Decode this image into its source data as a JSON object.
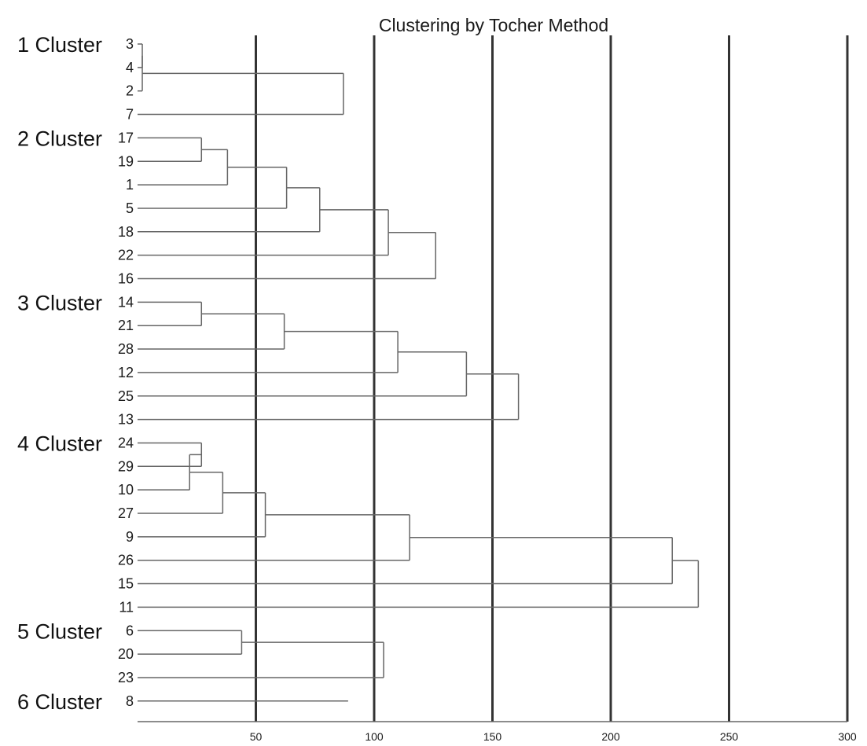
{
  "chart_data": {
    "type": "dendrogram",
    "title": "Clustering by Tocher Method",
    "xlim": [
      0,
      300
    ],
    "x_ticks": [
      50,
      100,
      150,
      200,
      250,
      300
    ],
    "vertical_gridlines": [
      50,
      100,
      150,
      200,
      250,
      300
    ],
    "line_color": "#666666",
    "grid_color": "#333333",
    "clusters": [
      {
        "label": "1 Cluster",
        "members": [
          "3",
          "4",
          "2",
          "7"
        ]
      },
      {
        "label": "2 Cluster",
        "members": [
          "17",
          "19",
          "1",
          "5",
          "18",
          "22",
          "16"
        ]
      },
      {
        "label": "3 Cluster",
        "members": [
          "14",
          "21",
          "28",
          "12",
          "25",
          "13"
        ]
      },
      {
        "label": "4 Cluster",
        "members": [
          "24",
          "29",
          "10",
          "27",
          "9",
          "26",
          "15",
          "11"
        ]
      },
      {
        "label": "5 Cluster",
        "members": [
          "6",
          "20",
          "23"
        ]
      },
      {
        "label": "6 Cluster",
        "members": [
          "8"
        ]
      }
    ],
    "leaves": [
      {
        "label": "3",
        "row": 0
      },
      {
        "label": "4",
        "row": 1
      },
      {
        "label": "2",
        "row": 2
      },
      {
        "label": "7",
        "row": 3
      },
      {
        "label": "17",
        "row": 4
      },
      {
        "label": "19",
        "row": 5
      },
      {
        "label": "1",
        "row": 6
      },
      {
        "label": "5",
        "row": 7
      },
      {
        "label": "18",
        "row": 8
      },
      {
        "label": "22",
        "row": 9
      },
      {
        "label": "16",
        "row": 10
      },
      {
        "label": "14",
        "row": 11
      },
      {
        "label": "21",
        "row": 12
      },
      {
        "label": "28",
        "row": 13
      },
      {
        "label": "12",
        "row": 14
      },
      {
        "label": "25",
        "row": 15
      },
      {
        "label": "13",
        "row": 16
      },
      {
        "label": "24",
        "row": 17
      },
      {
        "label": "29",
        "row": 18
      },
      {
        "label": "10",
        "row": 19
      },
      {
        "label": "27",
        "row": 20
      },
      {
        "label": "9",
        "row": 21
      },
      {
        "label": "26",
        "row": 22
      },
      {
        "label": "15",
        "row": 23
      },
      {
        "label": "11",
        "row": 24
      },
      {
        "label": "6",
        "row": 25
      },
      {
        "label": "20",
        "row": 26
      },
      {
        "label": "23",
        "row": 27
      },
      {
        "label": "8",
        "row": 28
      }
    ],
    "merges": [
      {
        "id": "m1",
        "children": [
          "3",
          "4"
        ],
        "height": 2
      },
      {
        "id": "m2",
        "children": [
          "m1",
          "2"
        ],
        "height": 2
      },
      {
        "id": "m3",
        "children": [
          "m2",
          "7"
        ],
        "height": 87
      },
      {
        "id": "m4",
        "children": [
          "17",
          "19"
        ],
        "height": 27
      },
      {
        "id": "m5",
        "children": [
          "m4",
          "1"
        ],
        "height": 38
      },
      {
        "id": "m6",
        "children": [
          "m5",
          "5"
        ],
        "height": 63
      },
      {
        "id": "m7",
        "children": [
          "m6",
          "18"
        ],
        "height": 77
      },
      {
        "id": "m8",
        "children": [
          "m7",
          "22"
        ],
        "height": 106
      },
      {
        "id": "m9",
        "children": [
          "m8",
          "16"
        ],
        "height": 126
      },
      {
        "id": "m10",
        "children": [
          "14",
          "21"
        ],
        "height": 27
      },
      {
        "id": "m11",
        "children": [
          "m10",
          "28"
        ],
        "height": 62
      },
      {
        "id": "m12",
        "children": [
          "m11",
          "12"
        ],
        "height": 110
      },
      {
        "id": "m13",
        "children": [
          "m12",
          "25"
        ],
        "height": 139
      },
      {
        "id": "m14",
        "children": [
          "m13",
          "13"
        ],
        "height": 161
      },
      {
        "id": "m15",
        "children": [
          "24",
          "29"
        ],
        "height": 27
      },
      {
        "id": "m16",
        "children": [
          "m15",
          "10"
        ],
        "height": 22
      },
      {
        "id": "m17",
        "children": [
          "m16",
          "27"
        ],
        "height": 36
      },
      {
        "id": "m18",
        "children": [
          "m17",
          "9"
        ],
        "height": 54
      },
      {
        "id": "m19",
        "children": [
          "m18",
          "26"
        ],
        "height": 115
      },
      {
        "id": "m20",
        "children": [
          "m19",
          "15"
        ],
        "height": 226
      },
      {
        "id": "m21",
        "children": [
          "m20",
          "11"
        ],
        "height": 237
      },
      {
        "id": "m22",
        "children": [
          "6",
          "20"
        ],
        "height": 44
      },
      {
        "id": "m23",
        "children": [
          "m22",
          "23"
        ],
        "height": 104
      }
    ],
    "singleton_extents": [
      {
        "leaf": "8",
        "height": 89
      }
    ]
  }
}
